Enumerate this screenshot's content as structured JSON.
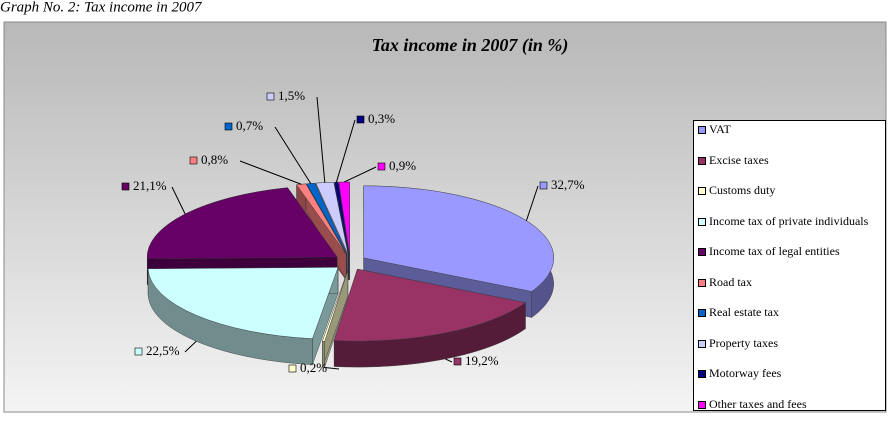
{
  "chart_data": {
    "type": "pie",
    "caption": "Graph No. 2: Tax income in 2007",
    "title": "Tax income in 2007 (in %)",
    "categories": [
      "VAT",
      "Excise taxes",
      "Customs duty",
      "Income tax of private individuals",
      "Income tax of legal entities",
      "Road tax",
      "Real estate tax",
      "Property taxes",
      "Motorway fees",
      "Other taxes and fees"
    ],
    "values": [
      32.7,
      19.2,
      0.2,
      22.5,
      21.1,
      0.8,
      0.7,
      1.5,
      0.3,
      0.9
    ],
    "value_labels": [
      "32,7%",
      "19,2%",
      "0,2%",
      "22,5%",
      "21,1%",
      "0,8%",
      "0,7%",
      "1,5%",
      "0,3%",
      "0,9%"
    ],
    "colors": [
      "#9999ff",
      "#993366",
      "#ffffcc",
      "#ccffff",
      "#660066",
      "#ff8080",
      "#0066cc",
      "#ccccff",
      "#000080",
      "#ff00ff"
    ],
    "legend": "right"
  }
}
